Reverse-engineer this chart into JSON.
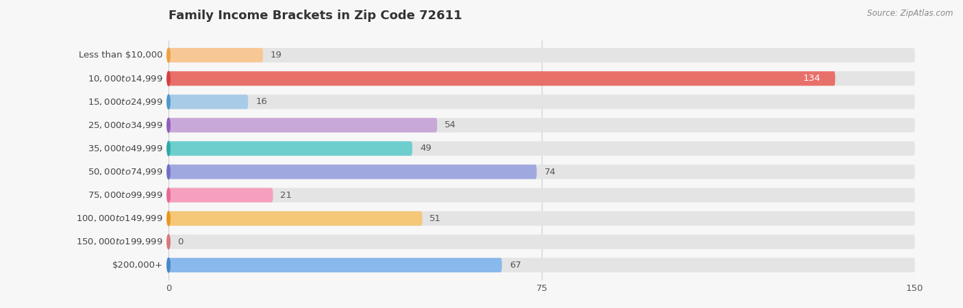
{
  "title": "Family Income Brackets in Zip Code 72611",
  "source": "Source: ZipAtlas.com",
  "categories": [
    "Less than $10,000",
    "$10,000 to $14,999",
    "$15,000 to $24,999",
    "$25,000 to $34,999",
    "$35,000 to $49,999",
    "$50,000 to $74,999",
    "$75,000 to $99,999",
    "$100,000 to $149,999",
    "$150,000 to $199,999",
    "$200,000+"
  ],
  "values": [
    19,
    134,
    16,
    54,
    49,
    74,
    21,
    51,
    0,
    67
  ],
  "bar_colors": [
    "#f7c896",
    "#e8706a",
    "#a8cce8",
    "#c8a8d8",
    "#6ecece",
    "#a0a8e0",
    "#f5a0be",
    "#f5c878",
    "#f0b0b0",
    "#88b8ec"
  ],
  "circle_colors": [
    "#f0a040",
    "#d44040",
    "#5098c8",
    "#9060b8",
    "#30a8a8",
    "#7070c8",
    "#e86898",
    "#e89820",
    "#d87878",
    "#4888c8"
  ],
  "xlim": [
    0,
    150
  ],
  "xticks": [
    0,
    75,
    150
  ],
  "background_color": "#f7f7f7",
  "bar_background": "#e4e4e4",
  "title_fontsize": 13,
  "label_fontsize": 9.5,
  "value_fontsize": 9.5
}
